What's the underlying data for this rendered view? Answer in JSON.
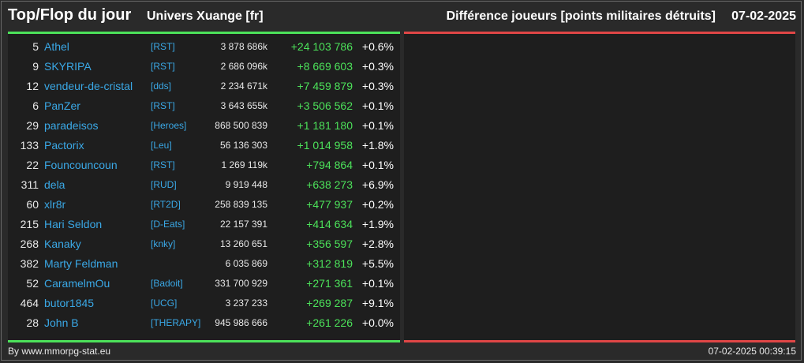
{
  "header": {
    "title": "Top/Flop du jour",
    "universe": "Univers Xuange [fr]",
    "metric": "Différence joueurs [points militaires détruits]",
    "date": "07-02-2025"
  },
  "colors": {
    "positive": "#4ce25a",
    "negative": "#e04646",
    "link": "#3aa8e6",
    "background": "#2a2a2a"
  },
  "rows": [
    {
      "rank": "5",
      "name": "Athel",
      "tag": "[RST]",
      "total": "3 878 686k",
      "delta": "+24 103 786",
      "pct": "+0.6%"
    },
    {
      "rank": "9",
      "name": "SKYRIPA",
      "tag": "[RST]",
      "total": "2 686 096k",
      "delta": "+8 669 603",
      "pct": "+0.3%"
    },
    {
      "rank": "12",
      "name": "vendeur-de-cristal",
      "tag": "[dds]",
      "total": "2 234 671k",
      "delta": "+7 459 879",
      "pct": "+0.3%"
    },
    {
      "rank": "6",
      "name": "PanZer",
      "tag": "[RST]",
      "total": "3 643 655k",
      "delta": "+3 506 562",
      "pct": "+0.1%"
    },
    {
      "rank": "29",
      "name": "paradeisos",
      "tag": "[Heroes]",
      "total": "868 500 839",
      "delta": "+1 181 180",
      "pct": "+0.1%"
    },
    {
      "rank": "133",
      "name": "Pactorix",
      "tag": "[Leu]",
      "total": "56 136 303",
      "delta": "+1 014 958",
      "pct": "+1.8%"
    },
    {
      "rank": "22",
      "name": "Founcouncoun",
      "tag": "[RST]",
      "total": "1 269 119k",
      "delta": "+794 864",
      "pct": "+0.1%"
    },
    {
      "rank": "311",
      "name": "dela",
      "tag": "[RUD]",
      "total": "9 919 448",
      "delta": "+638 273",
      "pct": "+6.9%"
    },
    {
      "rank": "60",
      "name": "xlr8r",
      "tag": "[RT2D]",
      "total": "258 839 135",
      "delta": "+477 937",
      "pct": "+0.2%"
    },
    {
      "rank": "215",
      "name": "Hari Seldon",
      "tag": "[D-Eats]",
      "total": "22 157 391",
      "delta": "+414 634",
      "pct": "+1.9%"
    },
    {
      "rank": "268",
      "name": "Kanaky",
      "tag": "[knky]",
      "total": "13 260 651",
      "delta": "+356 597",
      "pct": "+2.8%"
    },
    {
      "rank": "382",
      "name": "Marty Feldman",
      "tag": "",
      "total": "6 035 869",
      "delta": "+312 819",
      "pct": "+5.5%"
    },
    {
      "rank": "52",
      "name": "CaramelmOu",
      "tag": "[Badoit]",
      "total": "331 700 929",
      "delta": "+271 361",
      "pct": "+0.1%"
    },
    {
      "rank": "464",
      "name": "butor1845",
      "tag": "[UCG]",
      "total": "3 237 233",
      "delta": "+269 287",
      "pct": "+9.1%"
    },
    {
      "rank": "28",
      "name": "John B",
      "tag": "[THERAPY]",
      "total": "945 986 666",
      "delta": "+261 226",
      "pct": "+0.0%"
    }
  ],
  "footer": {
    "credit": "By www.mmorpg-stat.eu",
    "timestamp": "07-02-2025 00:39:15"
  }
}
